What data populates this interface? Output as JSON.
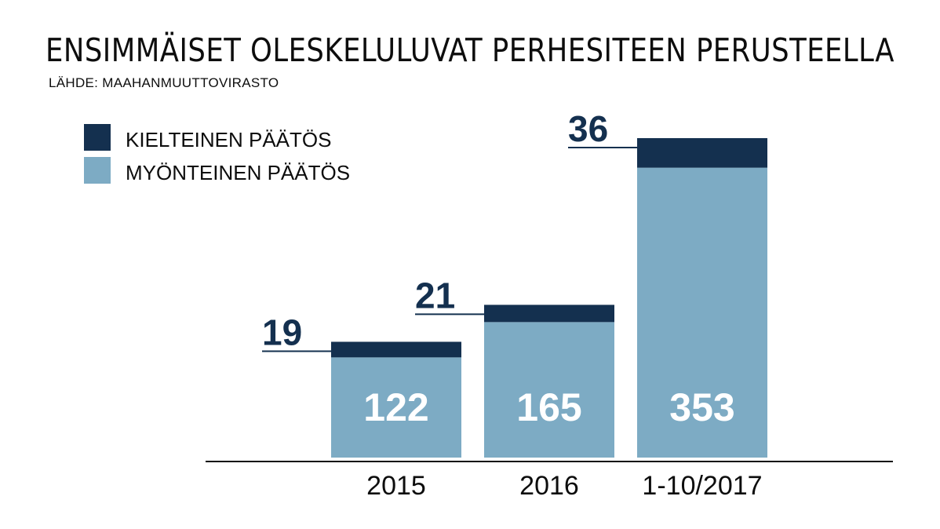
{
  "title": "ENSIMMÄISET OLESKELULUVAT PERHESITEEN PERUSTEELLA",
  "source": "LÄHDE: MAAHANMUUTTOVIRASTO",
  "colors": {
    "rejected": "#14304f",
    "approved": "#7dabc4",
    "text": "#0d0d0d",
    "approved_label": "#ffffff"
  },
  "chart_data": {
    "type": "bar",
    "stacked": true,
    "categories": [
      "2015",
      "2016",
      "1-10/2017"
    ],
    "series": [
      {
        "name": "MYÖNTEINEN PÄÄTÖS",
        "values": [
          122,
          165,
          353
        ]
      },
      {
        "name": "KIELTEINEN PÄÄTÖS",
        "values": [
          19,
          21,
          36
        ]
      }
    ],
    "legend": {
      "placement": "top-left",
      "items": [
        {
          "label": "KIELTEINEN PÄÄTÖS",
          "color": "#14304f"
        },
        {
          "label": "MYÖNTEINEN PÄÄTÖS",
          "color": "#7dabc4"
        }
      ]
    },
    "title": "ENSIMMÄISET OLESKELULUVAT PERHESITEEN PERUSTEELLA",
    "xlabel": "",
    "ylabel": "",
    "grid": false
  }
}
